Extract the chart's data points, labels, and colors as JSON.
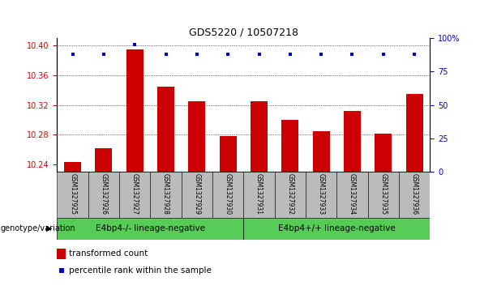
{
  "title": "GDS5220 / 10507218",
  "samples": [
    "GSM1327925",
    "GSM1327926",
    "GSM1327927",
    "GSM1327928",
    "GSM1327929",
    "GSM1327930",
    "GSM1327931",
    "GSM1327932",
    "GSM1327933",
    "GSM1327934",
    "GSM1327935",
    "GSM1327936"
  ],
  "bar_values": [
    10.243,
    10.262,
    10.395,
    10.345,
    10.325,
    10.278,
    10.325,
    10.3,
    10.285,
    10.312,
    10.282,
    10.335
  ],
  "percentile_values": [
    88,
    88,
    95,
    88,
    88,
    88,
    88,
    88,
    88,
    88,
    88,
    88
  ],
  "bar_color": "#cc0000",
  "dot_color": "#0000cc",
  "ylim_left": [
    10.23,
    10.41
  ],
  "ylim_right": [
    0,
    100
  ],
  "yticks_left": [
    10.24,
    10.28,
    10.32,
    10.36,
    10.4
  ],
  "yticks_right": [
    0,
    25,
    50,
    75,
    100
  ],
  "ytick_right_labels": [
    "0",
    "25",
    "50",
    "75",
    "100%"
  ],
  "group1_label": "E4bp4-/- lineage-negative",
  "group2_label": "E4bp4+/+ lineage-negative",
  "group1_indices": [
    0,
    1,
    2,
    3,
    4,
    5
  ],
  "group2_indices": [
    6,
    7,
    8,
    9,
    10,
    11
  ],
  "group_color": "#55cc55",
  "xlabel_label": "genotype/variation",
  "legend_bar_label": "transformed count",
  "legend_dot_label": "percentile rank within the sample",
  "tick_bg_color": "#bbbbbb",
  "bar_bottom": 10.23,
  "grid_yticks": [
    10.28,
    10.32,
    10.36,
    10.4
  ],
  "dot_percentile": 88
}
